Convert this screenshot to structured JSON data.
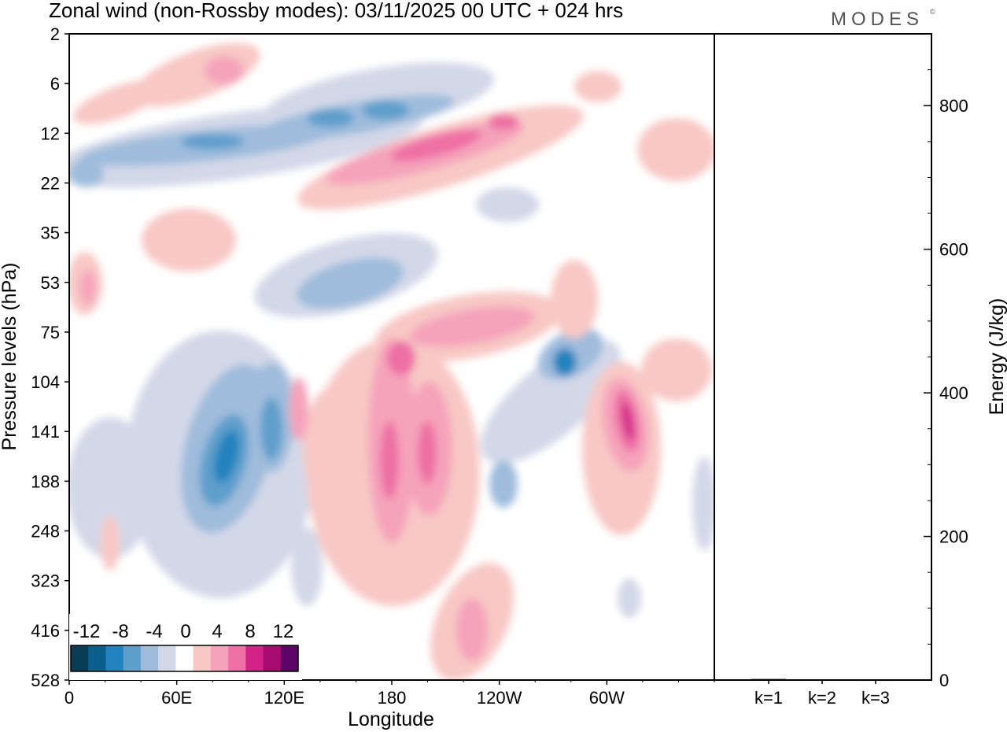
{
  "chart_data": [
    {
      "type": "heatmap",
      "title": "Zonal wind (non-Rossby modes):  03/11/2025  00 UTC  + 024 hrs",
      "xlabel": "Longitude",
      "ylabel": "Pressure levels (hPa)",
      "x_tick_labels": [
        "0",
        "60E",
        "120E",
        "180",
        "120W",
        "60W"
      ],
      "x_tick_degrees": [
        0,
        60,
        120,
        180,
        240,
        300
      ],
      "xlim": [
        0,
        360
      ],
      "y_levels": [
        "2",
        "6",
        "12",
        "22",
        "35",
        "53",
        "75",
        "104",
        "141",
        "188",
        "248",
        "323",
        "416",
        "528"
      ],
      "colorbar": {
        "tick_labels": [
          "-12",
          "-8",
          "-4",
          "0",
          "4",
          "8",
          "12"
        ],
        "levels": [
          -14,
          -12,
          -10,
          -8,
          -6,
          -4,
          -2,
          2,
          4,
          6,
          8,
          10,
          12,
          14
        ],
        "colors": [
          "#0c3d57",
          "#0a5f8c",
          "#2383be",
          "#5f9fcc",
          "#9fbcdc",
          "#d3d8e8",
          "#ffffff",
          "#f8c8c5",
          "#f5a3bb",
          "#ee70a4",
          "#d22288",
          "#a60c6f",
          "#5c0468"
        ]
      },
      "features": [
        {
          "kind": "jet",
          "sign": "negative",
          "lon_range": [
            0,
            210
          ],
          "level_range": [
            "6",
            "22"
          ],
          "peak": -10
        },
        {
          "kind": "jet",
          "sign": "positive",
          "lon_range": [
            120,
            265
          ],
          "level_range": [
            "6",
            "22"
          ],
          "peak": 12
        },
        {
          "kind": "blob",
          "sign": "negative",
          "lon_range": [
            60,
            125
          ],
          "level_range": [
            "104",
            "248"
          ],
          "peak": -11
        },
        {
          "kind": "blob",
          "sign": "positive",
          "lon_range": [
            165,
            210
          ],
          "level_range": [
            "75",
            "323"
          ],
          "peak": 10
        },
        {
          "kind": "blob",
          "sign": "positive",
          "lon_range": [
            290,
            325
          ],
          "level_range": [
            "104",
            "188"
          ],
          "peak": 12
        },
        {
          "kind": "blob",
          "sign": "negative",
          "lon_range": [
            265,
            300
          ],
          "level_range": [
            "75",
            "141"
          ],
          "peak": -10
        }
      ]
    },
    {
      "type": "bar",
      "ylabel": "Energy (J/kg)",
      "categories": [
        "k=1",
        "k=2",
        "k=3"
      ],
      "values": [
        1.5,
        1.0,
        0.5
      ],
      "ylim": [
        0,
        900
      ],
      "y_tick_labels": [
        "0",
        "200",
        "400",
        "600",
        "800"
      ],
      "y_tick_values": [
        0,
        200,
        400,
        600,
        800
      ]
    }
  ],
  "logo": {
    "text": "MODES",
    "mark": "©"
  },
  "colors": {
    "axis": "#000000",
    "bar": "#000000"
  }
}
